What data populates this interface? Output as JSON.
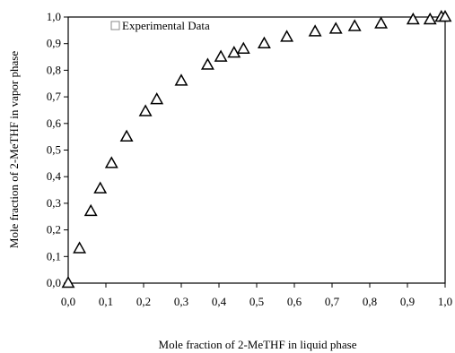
{
  "chart_data": {
    "type": "scatter",
    "xlabel": "Mole fraction of 2-MeTHF in liquid phase",
    "ylabel": "Mole fraction of 2-MeTHF in vapor phase",
    "xlim": [
      0,
      1
    ],
    "ylim": [
      0,
      1
    ],
    "x_ticks": [
      "0,0",
      "0,1",
      "0,2",
      "0,3",
      "0,4",
      "0,5",
      "0,6",
      "0,7",
      "0,8",
      "0,9",
      "1,0"
    ],
    "y_ticks": [
      "0,0",
      "0,1",
      "0,2",
      "0,3",
      "0,4",
      "0,5",
      "0,6",
      "0,7",
      "0,8",
      "0,9",
      "1,0"
    ],
    "grid": false,
    "legend_position": "top-left",
    "marker": "open-triangle",
    "series": [
      {
        "name": "Experimental Data",
        "points": [
          {
            "x": 0.0,
            "y": 0.0
          },
          {
            "x": 0.03,
            "y": 0.13
          },
          {
            "x": 0.06,
            "y": 0.27
          },
          {
            "x": 0.085,
            "y": 0.355
          },
          {
            "x": 0.115,
            "y": 0.45
          },
          {
            "x": 0.155,
            "y": 0.55
          },
          {
            "x": 0.205,
            "y": 0.645
          },
          {
            "x": 0.235,
            "y": 0.69
          },
          {
            "x": 0.3,
            "y": 0.76
          },
          {
            "x": 0.37,
            "y": 0.82
          },
          {
            "x": 0.405,
            "y": 0.85
          },
          {
            "x": 0.44,
            "y": 0.865
          },
          {
            "x": 0.465,
            "y": 0.88
          },
          {
            "x": 0.52,
            "y": 0.9
          },
          {
            "x": 0.58,
            "y": 0.925
          },
          {
            "x": 0.655,
            "y": 0.945
          },
          {
            "x": 0.71,
            "y": 0.955
          },
          {
            "x": 0.76,
            "y": 0.965
          },
          {
            "x": 0.83,
            "y": 0.975
          },
          {
            "x": 0.915,
            "y": 0.99
          },
          {
            "x": 0.96,
            "y": 0.99
          },
          {
            "x": 0.99,
            "y": 1.0
          },
          {
            "x": 1.0,
            "y": 1.0
          }
        ]
      }
    ]
  }
}
